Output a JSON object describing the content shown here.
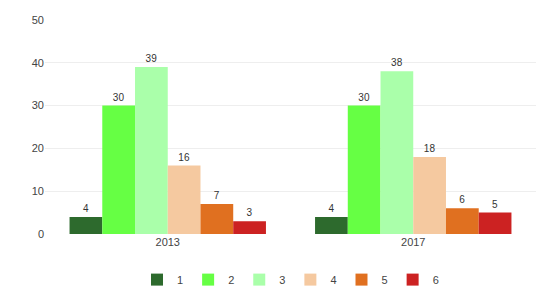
{
  "chart_data": {
    "type": "bar",
    "categories": [
      "2013",
      "2017"
    ],
    "series": [
      {
        "name": "1",
        "color": "#2d6a2d",
        "values": [
          4,
          4
        ]
      },
      {
        "name": "2",
        "color": "#66ff44",
        "values": [
          30,
          30
        ]
      },
      {
        "name": "3",
        "color": "#aaffaa",
        "values": [
          39,
          38
        ]
      },
      {
        "name": "4",
        "color": "#f5c9a0",
        "values": [
          16,
          18
        ]
      },
      {
        "name": "5",
        "color": "#e07020",
        "values": [
          7,
          6
        ]
      },
      {
        "name": "6",
        "color": "#cc2222",
        "values": [
          3,
          5
        ]
      }
    ],
    "ylim": [
      0,
      50
    ],
    "yticks": [
      0,
      10,
      20,
      30,
      40,
      50
    ],
    "grid": true,
    "legend": "bottom",
    "data_labels": true
  }
}
